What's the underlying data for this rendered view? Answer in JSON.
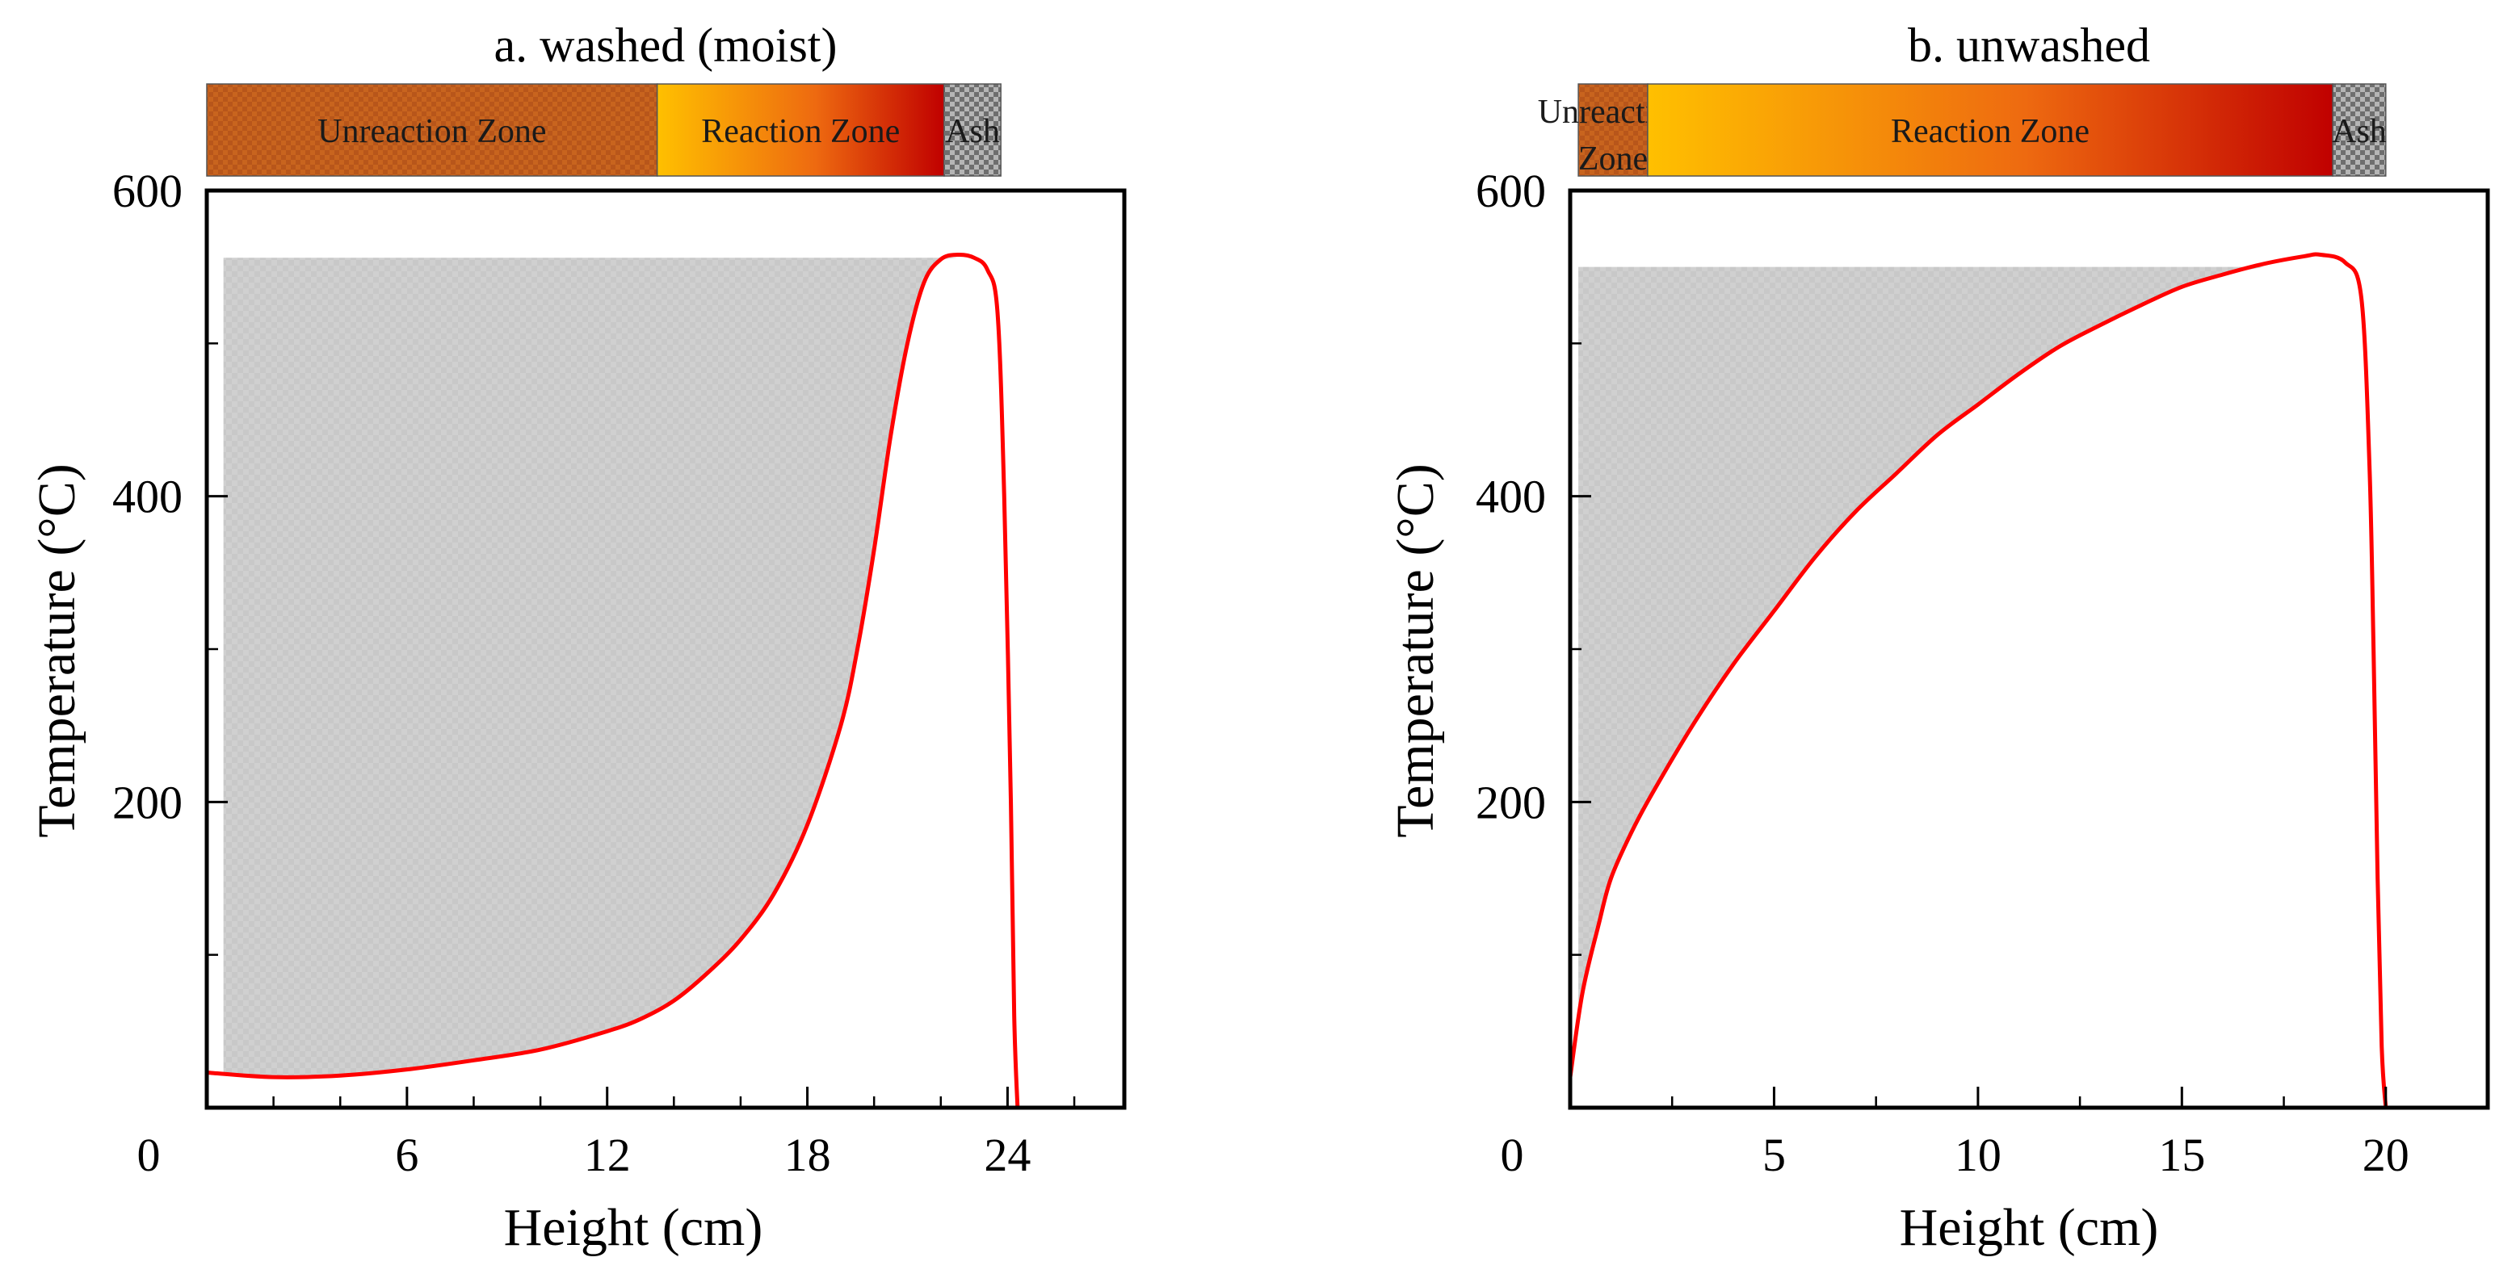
{
  "chart_data": [
    {
      "type": "line",
      "title": "a. washed (moist)",
      "xlabel": "Height (cm)",
      "ylabel": "Temperature (°C)",
      "xlim": [
        0,
        27.5
      ],
      "ylim": [
        0,
        600
      ],
      "x_ticks": [
        0,
        6,
        12,
        18,
        24
      ],
      "x_tick_labels": [
        "0",
        "6",
        "12",
        "18",
        "24"
      ],
      "y_ticks": [
        200,
        400,
        600
      ],
      "y_tick_labels": [
        "200",
        "400",
        "600"
      ],
      "grid": false,
      "zones": [
        {
          "label": "Unreaction Zone",
          "x_start": 0,
          "x_end": 13.5,
          "color": "#c8641e"
        },
        {
          "label": "Reaction Zone",
          "x_start": 13.5,
          "x_end": 22.1,
          "color_start": "#ffc000",
          "color_end": "#c00000"
        },
        {
          "label": "Ash",
          "x_start": 22.1,
          "x_end": 23.8,
          "color": "#9a9a9a"
        }
      ],
      "shaded_region": {
        "top_value": 556,
        "x_start": 0.5,
        "color": "#c8c8c8"
      },
      "series": [
        {
          "color": "#ff0000",
          "x": [
            0,
            2,
            4,
            6,
            8,
            10,
            12,
            13,
            14,
            15,
            16,
            17,
            18,
            19,
            19.5,
            20,
            20.5,
            21,
            21.5,
            22,
            22.5,
            23,
            23.4,
            23.7,
            23.9,
            24.1,
            24.2,
            24.3
          ],
          "y": [
            23,
            20,
            21,
            25,
            31,
            38,
            50,
            58,
            70,
            88,
            110,
            140,
            185,
            250,
            300,
            365,
            440,
            500,
            540,
            555,
            558,
            556,
            548,
            520,
            400,
            200,
            60,
            0
          ]
        }
      ]
    },
    {
      "type": "line",
      "title": "b. unwashed",
      "xlabel": "Height  (cm)",
      "ylabel": "Temperature (°C)",
      "xlim": [
        0,
        22.5
      ],
      "ylim": [
        0,
        600
      ],
      "x_ticks": [
        0,
        5,
        10,
        15,
        20
      ],
      "x_tick_labels": [
        "0",
        "5",
        "10",
        "15",
        "20"
      ],
      "y_ticks": [
        200,
        400,
        600
      ],
      "y_tick_labels": [
        "200",
        "400",
        "600"
      ],
      "grid": false,
      "zones": [
        {
          "label": "Unreaction Zone",
          "label_lines": [
            "Unreaction",
            "Zone"
          ],
          "x_start": 0.2,
          "x_end": 1.9,
          "color": "#c8641e"
        },
        {
          "label": "Reaction Zone",
          "x_start": 1.9,
          "x_end": 18.7,
          "color_start": "#ffc000",
          "color_end": "#c00000"
        },
        {
          "label": "Ash",
          "x_start": 18.7,
          "x_end": 20.0,
          "color": "#9a9a9a"
        }
      ],
      "shaded_region": {
        "top_value": 550,
        "x_start": 0.2,
        "color": "#c8c8c8"
      },
      "series": [
        {
          "color": "#ff0000",
          "x": [
            0,
            0.3,
            0.7,
            1,
            1.5,
            2,
            3,
            4,
            5,
            6,
            7,
            8,
            9,
            10,
            11,
            12,
            13,
            14,
            15,
            16,
            17,
            18,
            18.4,
            19,
            19.4,
            19.6,
            19.7,
            19.8,
            19.9,
            20.0
          ],
          "y": [
            20,
            75,
            120,
            150,
            180,
            205,
            250,
            290,
            325,
            360,
            390,
            415,
            440,
            460,
            480,
            498,
            512,
            525,
            537,
            545,
            552,
            557,
            558,
            553,
            530,
            420,
            300,
            150,
            40,
            0
          ]
        }
      ]
    }
  ]
}
